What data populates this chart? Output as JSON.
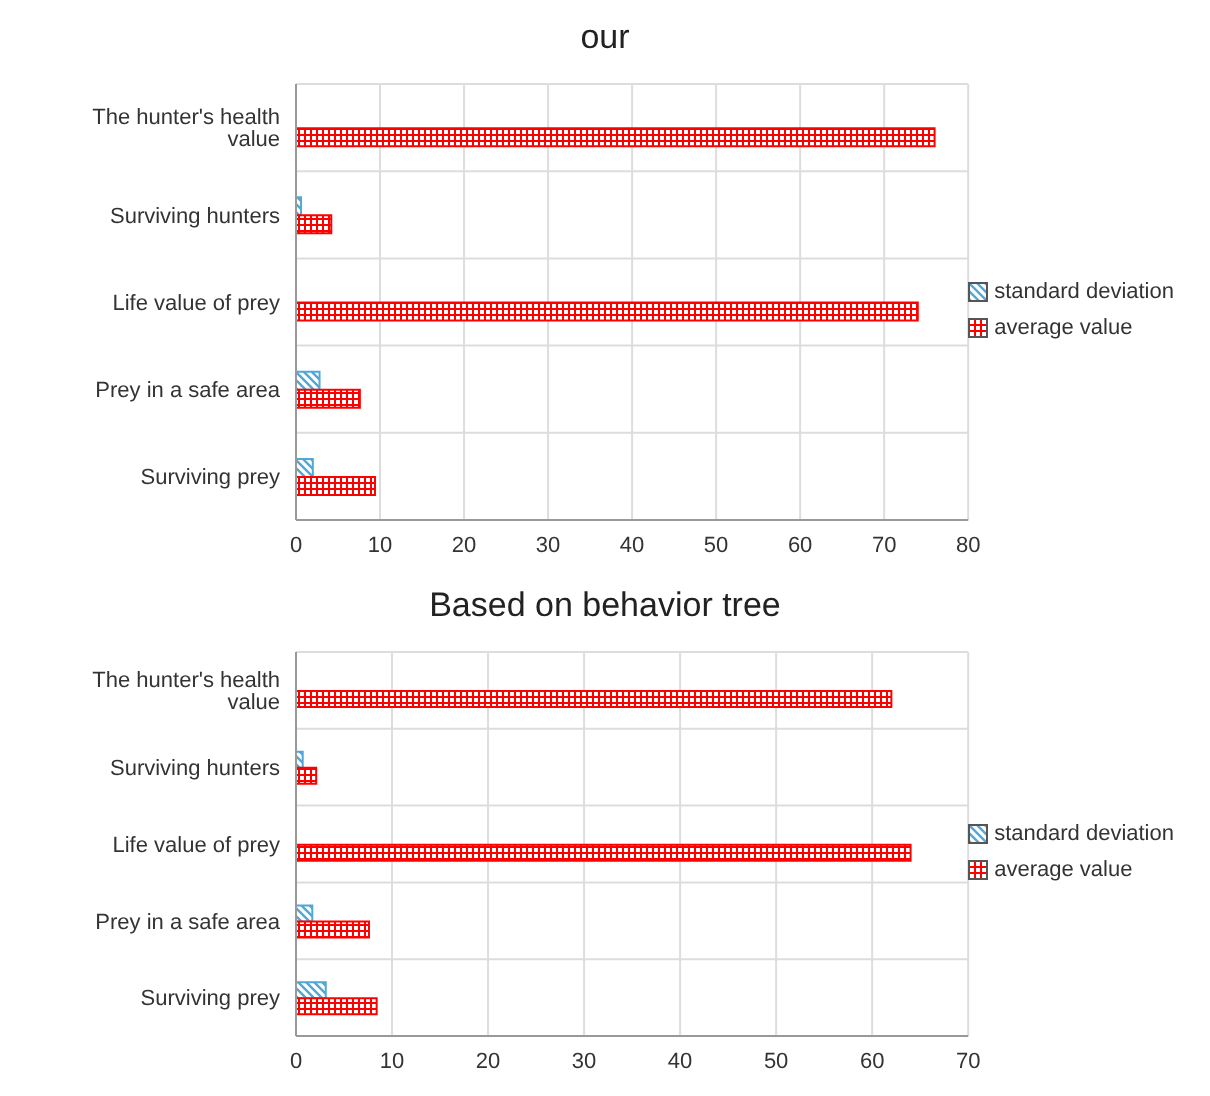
{
  "chart_data": [
    {
      "type": "bar",
      "orientation": "horizontal",
      "title": "our",
      "categories": [
        "The hunter's health value",
        "Surviving hunters",
        "Life value of prey",
        "Prey in a safe area",
        "Surviving prey"
      ],
      "series": [
        {
          "name": "standard deviation",
          "color": "#4fa8d8",
          "values": [
            null,
            0.6,
            null,
            2.8,
            2
          ]
        },
        {
          "name": "average value",
          "color": "#ff0000",
          "values": [
            76,
            4.2,
            74,
            7.6,
            9.4
          ]
        }
      ],
      "xlim": [
        0,
        80
      ],
      "xticks": [
        0,
        10,
        20,
        30,
        40,
        50,
        60,
        70,
        80
      ],
      "grid": true,
      "legend": "right"
    },
    {
      "type": "bar",
      "orientation": "horizontal",
      "title": "Based on behavior tree",
      "categories": [
        "The hunter's health value",
        "Surviving hunters",
        "Life value of prey",
        "Prey in a safe area",
        "Surviving prey"
      ],
      "series": [
        {
          "name": "standard deviation",
          "color": "#4fa8d8",
          "values": [
            null,
            0.7,
            null,
            1.7,
            3.1
          ]
        },
        {
          "name": "average value",
          "color": "#ff0000",
          "values": [
            62,
            2.1,
            64,
            7.6,
            8.4
          ]
        }
      ],
      "xlim": [
        0,
        70
      ],
      "xticks": [
        0,
        10,
        20,
        30,
        40,
        50,
        60,
        70
      ],
      "grid": true,
      "legend": "right"
    }
  ]
}
